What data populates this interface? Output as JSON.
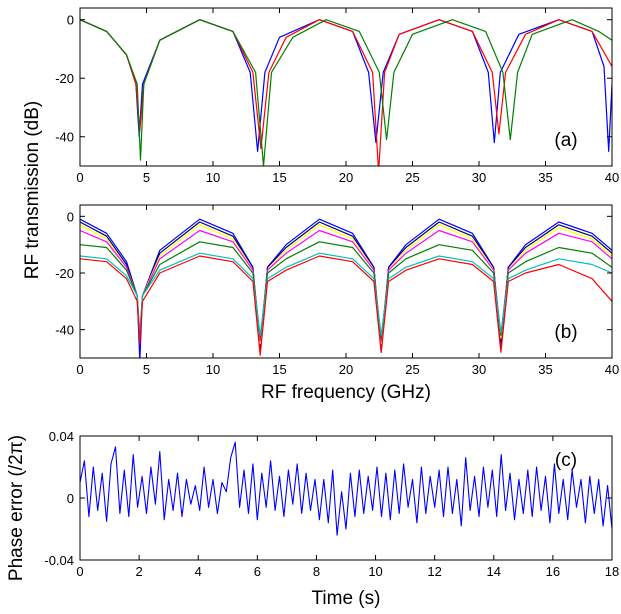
{
  "chart_data": [
    {
      "type": "line",
      "panel_label": "(a)",
      "xlim": [
        0,
        40
      ],
      "ylim": [
        -50,
        4
      ],
      "xticks": [
        "0",
        "5",
        "10",
        "15",
        "20",
        "25",
        "30",
        "35",
        "40"
      ],
      "yticks": [
        "0",
        "-20",
        "-40"
      ],
      "grid": false,
      "series": [
        {
          "color": "#0000ff",
          "fsr": 8.92,
          "x": [
            0,
            2,
            3.5,
            4.2,
            4.45,
            4.7,
            6,
            9,
            11.5,
            12.8,
            13.35,
            13.9,
            15,
            18,
            20.5,
            21.7,
            22.25,
            22.8,
            24,
            27,
            29.5,
            30.7,
            31.15,
            31.6,
            33,
            36,
            38.5,
            39.4,
            39.75,
            40
          ],
          "y": [
            0,
            -4,
            -12,
            -22,
            -40,
            -22,
            -7,
            0,
            -4,
            -18,
            -45,
            -18,
            -6,
            0,
            -4,
            -18,
            -42,
            -18,
            -5,
            0,
            -4,
            -18,
            -42,
            -18,
            -5,
            0,
            -4,
            -16,
            -45,
            -22
          ]
        },
        {
          "color": "#ff0000",
          "fsr": 9.05,
          "x": [
            0,
            2,
            3.5,
            4.2,
            4.5,
            4.8,
            6,
            9,
            11.5,
            13,
            13.6,
            14.2,
            15.5,
            18,
            20.5,
            22,
            22.45,
            22.9,
            24,
            27,
            29.5,
            31,
            31.5,
            32,
            33.5,
            36,
            38.5,
            40
          ],
          "y": [
            0,
            -4,
            -12,
            -22,
            -38,
            -22,
            -7,
            0,
            -4,
            -18,
            -44,
            -18,
            -6,
            0,
            -4,
            -18,
            -52,
            -18,
            -5,
            0,
            -4,
            -18,
            -39,
            -18,
            -5,
            0,
            -4,
            -16
          ]
        },
        {
          "color": "#008000",
          "fsr": 9.18,
          "x": [
            0,
            2,
            3.5,
            4.3,
            4.55,
            4.8,
            6,
            9,
            11.5,
            13.2,
            13.8,
            14.4,
            16,
            18.5,
            21,
            22.5,
            23.05,
            23.6,
            25,
            28,
            30.5,
            31.8,
            32.35,
            32.9,
            34,
            37,
            39,
            40
          ],
          "y": [
            0,
            -4,
            -12,
            -22,
            -48,
            -22,
            -7,
            0,
            -4,
            -18,
            -50,
            -18,
            -6,
            0,
            -4,
            -18,
            -41,
            -18,
            -5,
            0,
            -4,
            -18,
            -41,
            -18,
            -5,
            0,
            -4,
            -7
          ]
        }
      ]
    },
    {
      "type": "line",
      "panel_label": "(b)",
      "xlim": [
        0,
        40
      ],
      "ylim": [
        -50,
        4
      ],
      "xticks": [
        "0",
        "5",
        "10",
        "15",
        "20",
        "25",
        "30",
        "35",
        "40"
      ],
      "yticks": [
        "0",
        "-20",
        "-40"
      ],
      "xlabel": "RF frequency (GHz)",
      "grid": false,
      "notches_ghz": [
        4.5,
        13.55,
        22.65,
        31.65
      ],
      "series": [
        {
          "color": "#0000ff",
          "peak_db": -1,
          "x": [
            0,
            2,
            3.5,
            4.3,
            4.5,
            4.7,
            6,
            9,
            11.5,
            13,
            13.55,
            14.1,
            15.5,
            18,
            20.5,
            22.1,
            22.65,
            23.2,
            24.5,
            27,
            29.5,
            31.1,
            31.65,
            32.2,
            33.5,
            36,
            38.5,
            40
          ],
          "y": [
            -1,
            -6,
            -16,
            -28,
            -51,
            -28,
            -12,
            -1,
            -6,
            -18,
            -48,
            -18,
            -10,
            -1,
            -6,
            -18,
            -48,
            -18,
            -10,
            -1,
            -6,
            -18,
            -46,
            -18,
            -10,
            -2,
            -6,
            -12
          ]
        },
        {
          "color": "#000080",
          "peak_db": -2,
          "x": [
            0,
            2,
            3.5,
            4.3,
            4.5,
            4.7,
            6,
            9,
            11.5,
            13,
            13.55,
            14.1,
            15.5,
            18,
            20.5,
            22.1,
            22.65,
            23.2,
            24.5,
            27,
            29.5,
            31.1,
            31.65,
            32.2,
            33.5,
            36,
            38.5,
            40
          ],
          "y": [
            -2,
            -7,
            -17,
            -28,
            -45,
            -28,
            -13,
            -2,
            -7,
            -18,
            -46,
            -18,
            -11,
            -2,
            -7,
            -18,
            -46,
            -18,
            -11,
            -2,
            -7,
            -18,
            -44,
            -18,
            -11,
            -3,
            -7,
            -13
          ]
        },
        {
          "color": "#ffff00",
          "peak_db": -3,
          "x": [
            0,
            2,
            3.5,
            4.3,
            4.5,
            4.7,
            6,
            9,
            11.5,
            13,
            13.55,
            14.1,
            15.5,
            18,
            20.5,
            22.1,
            22.65,
            23.2,
            24.5,
            27,
            29.5,
            31.1,
            31.65,
            32.2,
            33.5,
            36,
            38.5,
            40
          ],
          "y": [
            -3,
            -8,
            -18,
            -28,
            -44,
            -28,
            -14,
            -3,
            -8,
            -19,
            -45,
            -19,
            -12,
            -3,
            -8,
            -19,
            -45,
            -19,
            -12,
            -3,
            -8,
            -19,
            -43,
            -19,
            -12,
            -4,
            -8,
            -14
          ]
        },
        {
          "color": "#ff00ff",
          "peak_db": -5,
          "x": [
            0,
            2,
            3.5,
            4.3,
            4.5,
            4.7,
            6,
            9,
            11.5,
            13,
            13.55,
            14.1,
            15.5,
            18,
            20.5,
            22.1,
            22.65,
            23.2,
            24.5,
            27,
            29.5,
            31.1,
            31.65,
            32.2,
            33.5,
            36,
            38.5,
            40
          ],
          "y": [
            -5,
            -9,
            -18,
            -28,
            -43,
            -28,
            -15,
            -5,
            -9,
            -19,
            -44,
            -19,
            -13,
            -5,
            -9,
            -19,
            -44,
            -19,
            -13,
            -5,
            -9,
            -19,
            -42,
            -19,
            -13,
            -6,
            -9,
            -15
          ]
        },
        {
          "color": "#008000",
          "peak_db": -9,
          "x": [
            0,
            2,
            3.5,
            4.3,
            4.5,
            4.7,
            6,
            9,
            11.5,
            13,
            13.55,
            14.1,
            15.5,
            18,
            20.5,
            22.1,
            22.65,
            23.2,
            24.5,
            27,
            29.5,
            31.1,
            31.65,
            32.2,
            33.5,
            36,
            38.5,
            40
          ],
          "y": [
            -10,
            -11,
            -19,
            -28,
            -42,
            -28,
            -17,
            -9,
            -11,
            -20,
            -43,
            -20,
            -15,
            -9,
            -11,
            -20,
            -43,
            -20,
            -15,
            -10,
            -12,
            -20,
            -42,
            -20,
            -16,
            -11,
            -13,
            -18
          ]
        },
        {
          "color": "#00c0c0",
          "peak_db": -13,
          "x": [
            0,
            2,
            3.5,
            4.3,
            4.5,
            4.7,
            6,
            9,
            11.5,
            13,
            13.55,
            14.1,
            15.5,
            18,
            20.5,
            22.1,
            22.65,
            23.2,
            24.5,
            27,
            29.5,
            31.1,
            31.65,
            32.2,
            33.5,
            36,
            38.5,
            40
          ],
          "y": [
            -14,
            -15,
            -21,
            -28,
            -41,
            -28,
            -19,
            -13,
            -15,
            -22,
            -42,
            -22,
            -18,
            -13,
            -15,
            -22,
            -42,
            -22,
            -18,
            -14,
            -16,
            -22,
            -41,
            -22,
            -19,
            -15,
            -17,
            -20
          ]
        },
        {
          "color": "#ff0000",
          "peak_db": -14,
          "x": [
            0,
            2,
            3.5,
            4.3,
            4.5,
            4.7,
            6,
            9,
            11.5,
            13,
            13.55,
            14.1,
            15.5,
            18,
            20.5,
            22.1,
            22.65,
            23.2,
            24.5,
            27,
            29.5,
            31.1,
            31.65,
            32.2,
            33.5,
            36,
            38.5,
            40
          ],
          "y": [
            -15,
            -16,
            -22,
            -30,
            -45,
            -30,
            -20,
            -14,
            -16,
            -23,
            -49,
            -23,
            -19,
            -14,
            -16,
            -23,
            -48,
            -23,
            -19,
            -15,
            -17,
            -23,
            -48,
            -23,
            -20,
            -17,
            -22,
            -30
          ]
        }
      ]
    },
    {
      "type": "line",
      "panel_label": "(c)",
      "xlim": [
        0,
        18
      ],
      "ylim": [
        -0.04,
        0.04
      ],
      "xticks": [
        "0",
        "2",
        "4",
        "6",
        "8",
        "10",
        "12",
        "14",
        "16",
        "18"
      ],
      "yticks": [
        "0.04",
        "0",
        "-0.04"
      ],
      "xlabel": "Time (s)",
      "grid": false,
      "series": [
        {
          "color": "#0000ff",
          "x": [
            0,
            0.15,
            0.3,
            0.45,
            0.6,
            0.75,
            0.9,
            1.05,
            1.2,
            1.35,
            1.5,
            1.65,
            1.8,
            1.95,
            2.1,
            2.25,
            2.4,
            2.55,
            2.7,
            2.85,
            3.0,
            3.15,
            3.3,
            3.45,
            3.6,
            3.75,
            3.9,
            4.05,
            4.2,
            4.35,
            4.5,
            4.65,
            4.8,
            4.95,
            5.1,
            5.25,
            5.4,
            5.55,
            5.7,
            5.85,
            6.0,
            6.15,
            6.3,
            6.45,
            6.6,
            6.75,
            6.9,
            7.05,
            7.2,
            7.35,
            7.5,
            7.65,
            7.8,
            7.95,
            8.1,
            8.25,
            8.4,
            8.55,
            8.7,
            8.85,
            9.0,
            9.15,
            9.3,
            9.45,
            9.6,
            9.75,
            9.9,
            10.05,
            10.2,
            10.35,
            10.5,
            10.65,
            10.8,
            10.95,
            11.1,
            11.25,
            11.4,
            11.55,
            11.7,
            11.85,
            12.0,
            12.15,
            12.3,
            12.45,
            12.6,
            12.75,
            12.9,
            13.05,
            13.2,
            13.35,
            13.5,
            13.65,
            13.8,
            13.95,
            14.1,
            14.25,
            14.4,
            14.55,
            14.7,
            14.85,
            15.0,
            15.15,
            15.3,
            15.45,
            15.6,
            15.75,
            15.9,
            16.05,
            16.2,
            16.35,
            16.5,
            16.65,
            16.8,
            16.95,
            17.1,
            17.25,
            17.4,
            17.55,
            17.7,
            17.85,
            18.0
          ],
          "y": [
            0.01,
            0.024,
            -0.012,
            0.02,
            -0.008,
            0.016,
            -0.015,
            0.022,
            0.033,
            -0.01,
            0.018,
            -0.012,
            0.028,
            -0.006,
            0.014,
            -0.01,
            0.02,
            -0.004,
            0.03,
            -0.014,
            0.012,
            -0.008,
            0.016,
            -0.012,
            0.012,
            -0.004,
            0.008,
            -0.008,
            0.02,
            -0.006,
            0.012,
            -0.01,
            0.01,
            0.004,
            0.026,
            0.036,
            -0.006,
            0.018,
            -0.01,
            0.022,
            -0.014,
            0.016,
            -0.006,
            0.024,
            -0.008,
            0.014,
            -0.012,
            0.018,
            -0.004,
            0.022,
            -0.01,
            0.016,
            -0.008,
            0.012,
            -0.014,
            0.012,
            -0.016,
            0.018,
            -0.024,
            0.004,
            -0.02,
            0.016,
            -0.012,
            0.018,
            -0.01,
            0.014,
            -0.008,
            0.02,
            -0.012,
            0.016,
            -0.014,
            0.018,
            -0.01,
            0.022,
            -0.006,
            0.012,
            -0.016,
            0.02,
            -0.01,
            0.014,
            -0.006,
            0.018,
            -0.012,
            0.02,
            -0.01,
            0.012,
            -0.018,
            0.026,
            -0.008,
            0.014,
            -0.012,
            0.02,
            -0.006,
            0.018,
            -0.012,
            0.028,
            -0.008,
            0.016,
            -0.014,
            0.012,
            -0.01,
            0.018,
            -0.012,
            0.02,
            -0.008,
            0.014,
            -0.016,
            0.022,
            -0.01,
            0.012,
            -0.014,
            0.018,
            -0.006,
            0.012,
            -0.016,
            0.014,
            -0.01,
            0.012,
            -0.018,
            0.008,
            -0.02
          ]
        }
      ]
    }
  ],
  "shared_ylabel": "RF transmission (dB)",
  "phase_ylabel": "Phase error (/2π)"
}
